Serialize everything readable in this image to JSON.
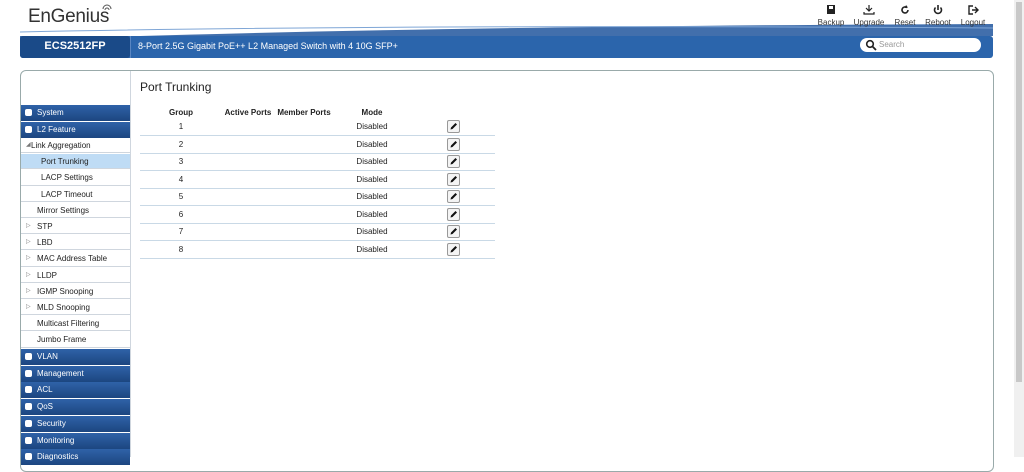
{
  "header": {
    "logo": "EnGenius",
    "actions": [
      "Backup",
      "Upgrade",
      "Reset",
      "Reboot",
      "Logout"
    ],
    "model": "ECS2512FP",
    "description": "8-Port 2.5G Gigabit PoE++ L2 Managed Switch with 4 10G SFP+",
    "search_placeholder": "Search"
  },
  "sidebar": {
    "top": [
      "System",
      "L2 Feature"
    ],
    "l2_feature": [
      "Link Aggregation",
      "Port Trunking",
      "LACP Settings",
      "LACP Timeout",
      "Mirror Settings",
      "STP",
      "LBD",
      "MAC Address Table",
      "LLDP",
      "IGMP Snooping",
      "MLD Snooping",
      "Multicast Filtering",
      "Jumbo Frame"
    ],
    "bottom": [
      "VLAN",
      "Management",
      "ACL",
      "QoS",
      "Security",
      "Monitoring",
      "Diagnostics"
    ]
  },
  "content": {
    "title": "Port Trunking",
    "table": {
      "columns": [
        "Group",
        "Active Ports",
        "Member Ports",
        "Mode"
      ],
      "rows": [
        {
          "group": 1,
          "mode": "Disabled"
        },
        {
          "group": 2,
          "mode": "Disabled"
        },
        {
          "group": 3,
          "mode": "Disabled"
        },
        {
          "group": 4,
          "mode": "Disabled"
        },
        {
          "group": 5,
          "mode": "Disabled"
        },
        {
          "group": 6,
          "mode": "Disabled"
        },
        {
          "group": 7,
          "mode": "Disabled"
        },
        {
          "group": 8,
          "mode": "Disabled"
        }
      ]
    }
  }
}
